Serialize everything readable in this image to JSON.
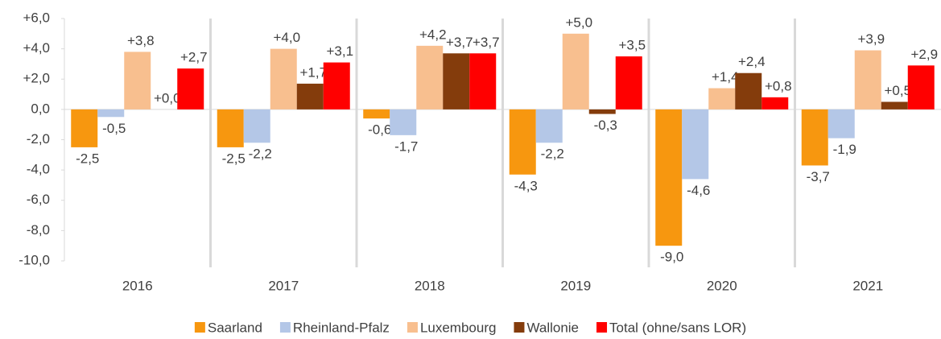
{
  "chart_data": {
    "type": "bar",
    "categories": [
      "2016",
      "2017",
      "2018",
      "2019",
      "2020",
      "2021"
    ],
    "series": [
      {
        "name": "Saarland",
        "color": "#f7970f",
        "values": [
          -2.5,
          -2.5,
          -0.6,
          -4.3,
          -9.0,
          -3.7
        ],
        "value_labels": [
          "-2,5",
          "-2,5",
          "-0,6",
          "-4,3",
          "-9,0",
          "-3,7"
        ]
      },
      {
        "name": "Rheinland-Pfalz",
        "color": "#b4c7e7",
        "values": [
          -0.5,
          -2.2,
          -1.7,
          -2.2,
          -4.6,
          -1.9
        ],
        "value_labels": [
          "-0,5",
          "-2,2",
          "-1,7",
          "-2,2",
          "-4,6",
          "-1,9"
        ]
      },
      {
        "name": "Luxembourg",
        "color": "#f8bf8f",
        "values": [
          3.8,
          4.0,
          4.2,
          5.0,
          1.4,
          3.9
        ],
        "value_labels": [
          "+3,8",
          "+4,0",
          "+4,2",
          "+5,0",
          "+1,4",
          "+3,9"
        ]
      },
      {
        "name": "Wallonie",
        "color": "#843c0c",
        "values": [
          0.0,
          1.7,
          3.7,
          -0.3,
          2.4,
          0.5
        ],
        "value_labels": [
          "+0,0",
          "+1,7",
          "+3,7",
          "-0,3",
          "+2,4",
          "+0,5"
        ]
      },
      {
        "name": "Total (ohne/sans LOR)",
        "color": "#ff0000",
        "values": [
          2.7,
          3.1,
          3.7,
          3.5,
          0.8,
          2.9
        ],
        "value_labels": [
          "+2,7",
          "+3,1",
          "+3,7",
          "+3,5",
          "+0,8",
          "+2,9"
        ]
      }
    ],
    "ylim": [
      -10,
      6
    ],
    "yticks": [
      {
        "value": -10,
        "label": "-10,0"
      },
      {
        "value": -8,
        "label": "-8,0"
      },
      {
        "value": -6,
        "label": "-6,0"
      },
      {
        "value": -4,
        "label": "-4,0"
      },
      {
        "value": -2,
        "label": "-2,0"
      },
      {
        "value": 0,
        "label": "0,0"
      },
      {
        "value": 2,
        "label": "+2,0"
      },
      {
        "value": 4,
        "label": "+4,0"
      },
      {
        "value": 6,
        "label": "+6,0"
      }
    ],
    "legend": "bottom"
  }
}
